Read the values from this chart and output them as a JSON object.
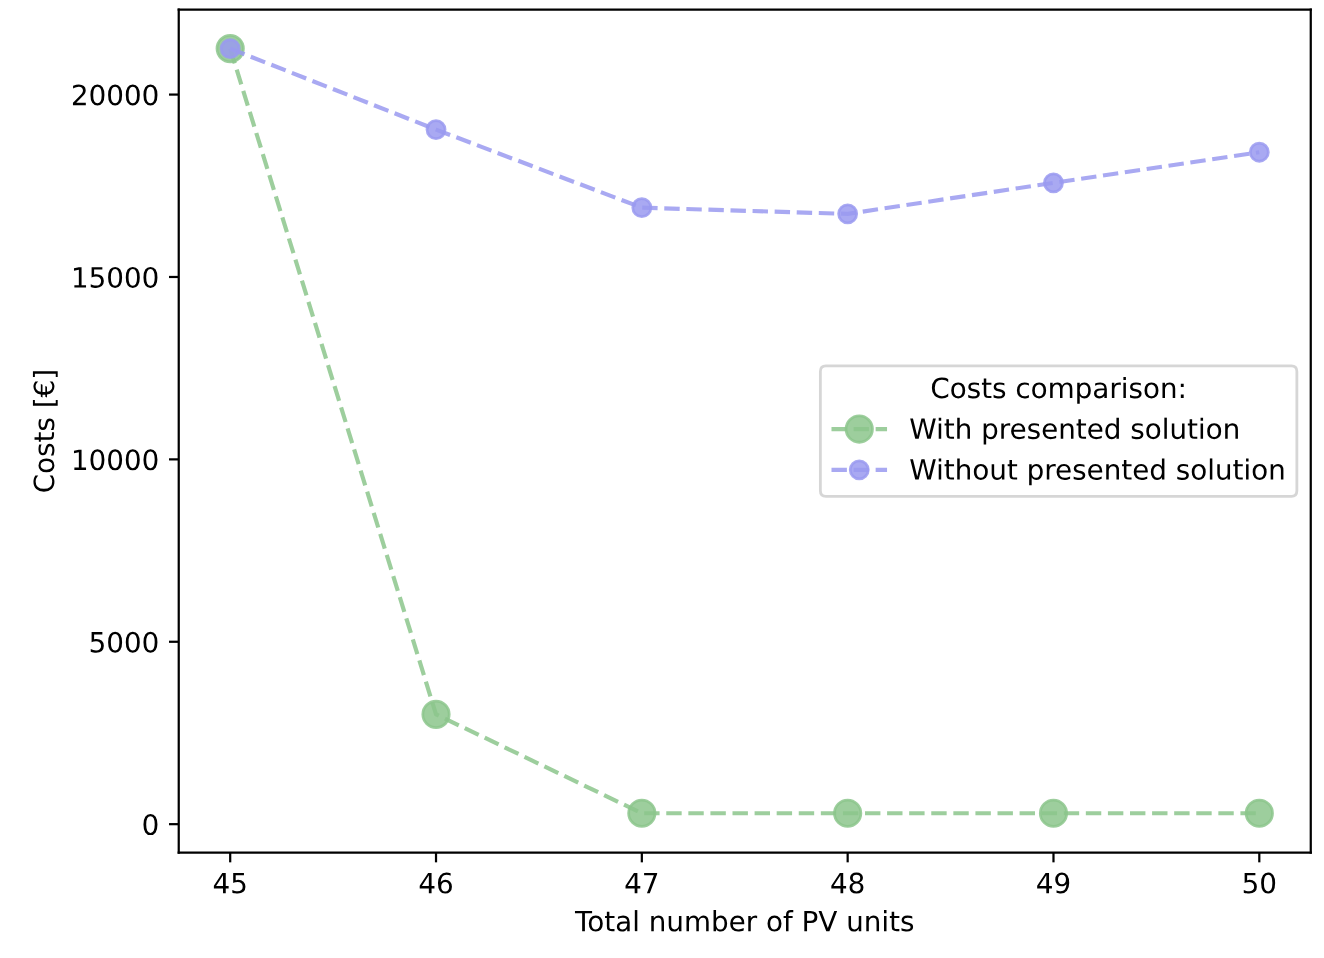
{
  "chart_data": {
    "type": "line",
    "xlabel": "Total number of PV units",
    "ylabel": "Costs [€]",
    "legend_title": "Costs comparison:",
    "legend": "right",
    "marker": "circle",
    "line_style": "dashed",
    "grid": false,
    "x": [
      45,
      46,
      47,
      48,
      49,
      50
    ],
    "xlim": [
      44.75,
      50.25
    ],
    "xticks": [
      45,
      46,
      47,
      48,
      49,
      50
    ],
    "ylim": [
      -780,
      22330
    ],
    "yticks": [
      0,
      5000,
      10000,
      15000,
      20000
    ],
    "series": [
      {
        "name": "With presented solution",
        "color": "#8cc68c",
        "values": [
          21260,
          3010,
          300,
          300,
          300,
          300
        ]
      },
      {
        "name": "Without presented solution",
        "color": "#9a9af0",
        "values": [
          21260,
          19040,
          16900,
          16730,
          17580,
          18420
        ]
      }
    ]
  }
}
